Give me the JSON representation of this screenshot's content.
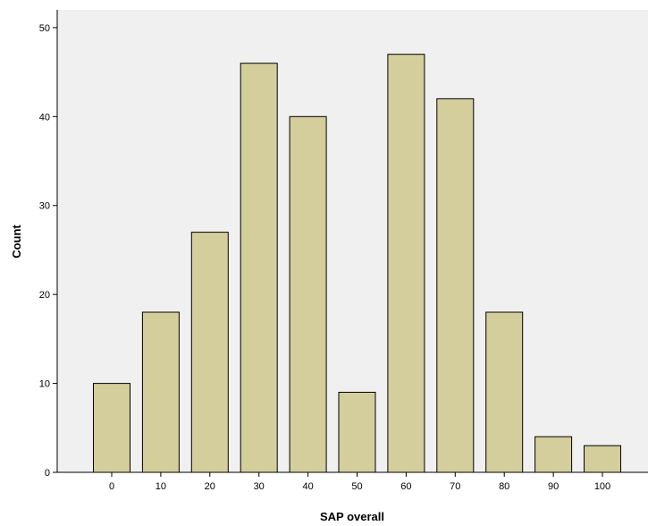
{
  "chart_data": {
    "type": "bar",
    "categories": [
      "0",
      "10",
      "20",
      "30",
      "40",
      "50",
      "60",
      "70",
      "80",
      "90",
      "100"
    ],
    "values": [
      10,
      18,
      27,
      46,
      40,
      9,
      47,
      42,
      18,
      4,
      3
    ],
    "title": "",
    "xlabel": "SAP overall",
    "ylabel": "Count",
    "ylim": [
      0,
      52
    ],
    "yticks": [
      0,
      10,
      20,
      30,
      40,
      50
    ],
    "grid": false,
    "legend": "none",
    "colors": {
      "bar_fill": "#d3ce9b",
      "bar_stroke": "#000000",
      "plot_background": "#f0f0f0",
      "axis": "#000000"
    }
  }
}
